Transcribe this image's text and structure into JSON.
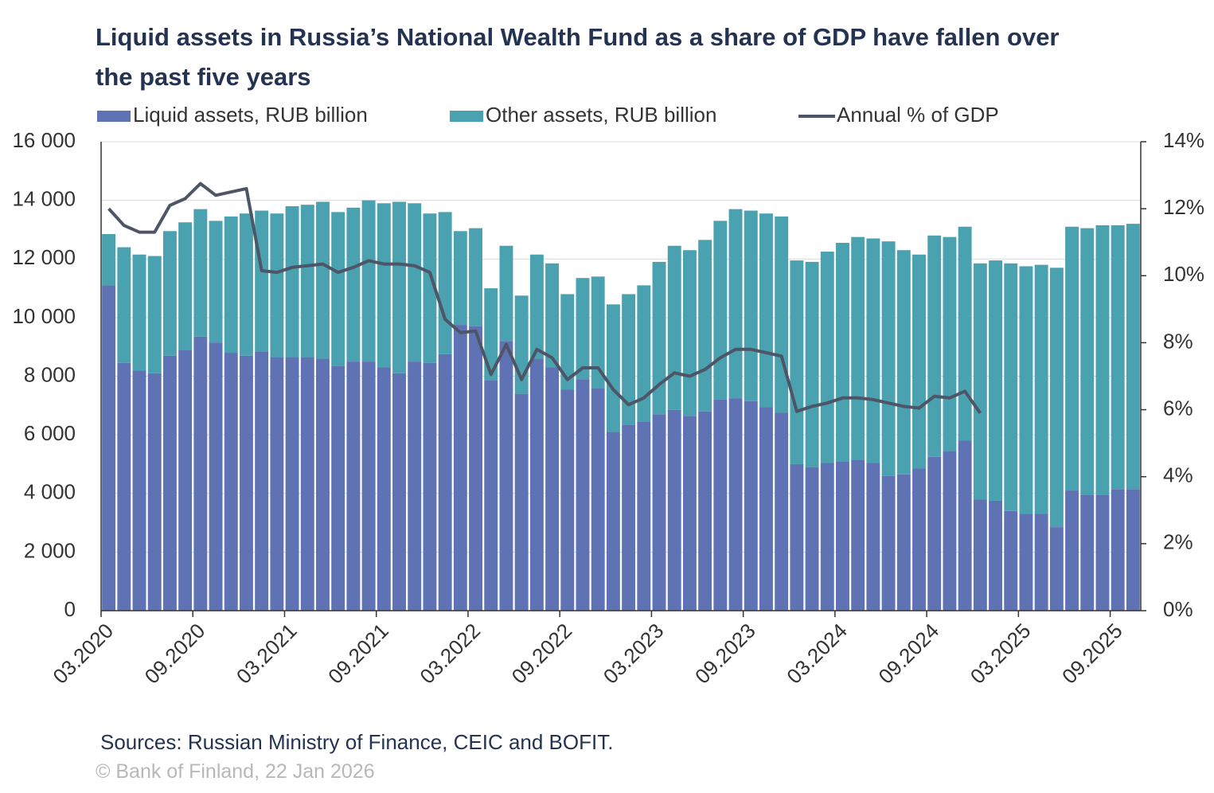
{
  "chart_data": {
    "type": "bar_line",
    "title": "Liquid assets in Russia’s National Wealth Fund as a share of GDP have fallen over the past five years",
    "categories": [
      "03.2020",
      null,
      null,
      null,
      null,
      null,
      "09.2020",
      null,
      null,
      null,
      null,
      null,
      "03.2021",
      null,
      null,
      null,
      null,
      null,
      "09.2021",
      null,
      null,
      null,
      null,
      null,
      "03.2022",
      null,
      null,
      null,
      null,
      null,
      "09.2022",
      null,
      null,
      null,
      null,
      null,
      "03.2023",
      null,
      null,
      null,
      null,
      null,
      "09.2023",
      null,
      null,
      null,
      null,
      null,
      "03.2024",
      null,
      null,
      null,
      null,
      null,
      "09.2024",
      null,
      null,
      null,
      null,
      null,
      "03.2025",
      null,
      null,
      null,
      null,
      null,
      "09.2025",
      null
    ],
    "series": [
      {
        "name": "Liquid assets, RUB billion",
        "color": "#5f72b4",
        "kind": "bar",
        "values": [
          11100,
          8450,
          8200,
          8100,
          8700,
          8900,
          9350,
          9150,
          8800,
          8700,
          8850,
          8650,
          8650,
          8650,
          8600,
          8350,
          8500,
          8500,
          8300,
          8100,
          8500,
          8450,
          8750,
          9750,
          9700,
          7850,
          9200,
          7400,
          8600,
          8300,
          7550,
          7900,
          7600,
          6100,
          6350,
          6450,
          6700,
          6850,
          6650,
          6800,
          7200,
          7250,
          7150,
          6950,
          6750,
          5000,
          4900,
          5050,
          5100,
          5150,
          5050,
          4600,
          4650,
          4850,
          5250,
          5450,
          5800,
          3800,
          3750,
          3400,
          3300,
          3300,
          2850,
          4100,
          3950,
          3950,
          4150,
          4150
        ]
      },
      {
        "name": "Other assets, RUB billion",
        "color": "#4aa2b0",
        "kind": "bar",
        "values": [
          1750,
          3950,
          3950,
          4000,
          4250,
          4350,
          4350,
          4150,
          4650,
          4850,
          4800,
          4900,
          5150,
          5200,
          5350,
          5250,
          5250,
          5500,
          5600,
          5850,
          5400,
          5100,
          4850,
          3200,
          3350,
          3150,
          3250,
          3350,
          3550,
          3550,
          3250,
          3450,
          3800,
          4350,
          4450,
          4650,
          5200,
          5600,
          5650,
          5850,
          6100,
          6450,
          6500,
          6600,
          6700,
          6950,
          7000,
          7200,
          7450,
          7600,
          7650,
          8000,
          7650,
          7300,
          7550,
          7300,
          7300,
          8050,
          8200,
          8450,
          8450,
          8500,
          8850,
          9000,
          9100,
          9200,
          9000,
          9050
        ]
      },
      {
        "name": "Annual % of GDP",
        "color": "#4d5566",
        "kind": "line",
        "axis": "y2",
        "values": [
          12.0,
          11.5,
          11.3,
          11.3,
          12.1,
          12.3,
          12.75,
          12.4,
          12.5,
          12.6,
          10.15,
          10.1,
          10.25,
          10.3,
          10.35,
          10.1,
          10.25,
          10.45,
          10.35,
          10.35,
          10.3,
          10.1,
          8.7,
          8.3,
          8.35,
          7.05,
          7.95,
          6.9,
          7.8,
          7.55,
          6.9,
          7.25,
          7.25,
          6.6,
          6.15,
          6.35,
          6.75,
          7.1,
          7.0,
          7.2,
          7.55,
          7.8,
          7.8,
          7.7,
          7.6,
          5.95,
          6.1,
          6.2,
          6.35,
          6.35,
          6.3,
          6.2,
          6.1,
          6.05,
          6.4,
          6.35,
          6.55,
          5.9,
          null,
          null,
          null,
          null,
          null,
          null,
          null,
          null,
          null,
          null
        ]
      }
    ],
    "ylim": [
      0,
      16000
    ],
    "yticks": [
      0,
      {
        "value": 2000,
        "label": "2 000"
      },
      {
        "value": 4000,
        "label": "4 000"
      },
      {
        "value": 6000,
        "label": "6 000"
      },
      {
        "value": 8000,
        "label": "8 000"
      },
      {
        "value": 10000,
        "label": "10 000"
      },
      {
        "value": 12000,
        "label": "12 000"
      },
      {
        "value": 14000,
        "label": "14 000"
      },
      {
        "value": 16000,
        "label": "16 000"
      }
    ],
    "y2lim": [
      0,
      14
    ],
    "y2ticks": [
      {
        "value": 0,
        "label": "0%"
      },
      {
        "value": 2,
        "label": "2%"
      },
      {
        "value": 4,
        "label": "4%"
      },
      {
        "value": 6,
        "label": "6%"
      },
      {
        "value": 8,
        "label": "8%"
      },
      {
        "value": 10,
        "label": "10%"
      },
      {
        "value": 12,
        "label": "12%"
      },
      {
        "value": 14,
        "label": "14%"
      }
    ],
    "grid": true,
    "stacked": true,
    "source": "Sources: Russian Ministry of Finance, CEIC and BOFIT.",
    "copyright": "© Bank of Finland, 22 Jan 2026"
  }
}
